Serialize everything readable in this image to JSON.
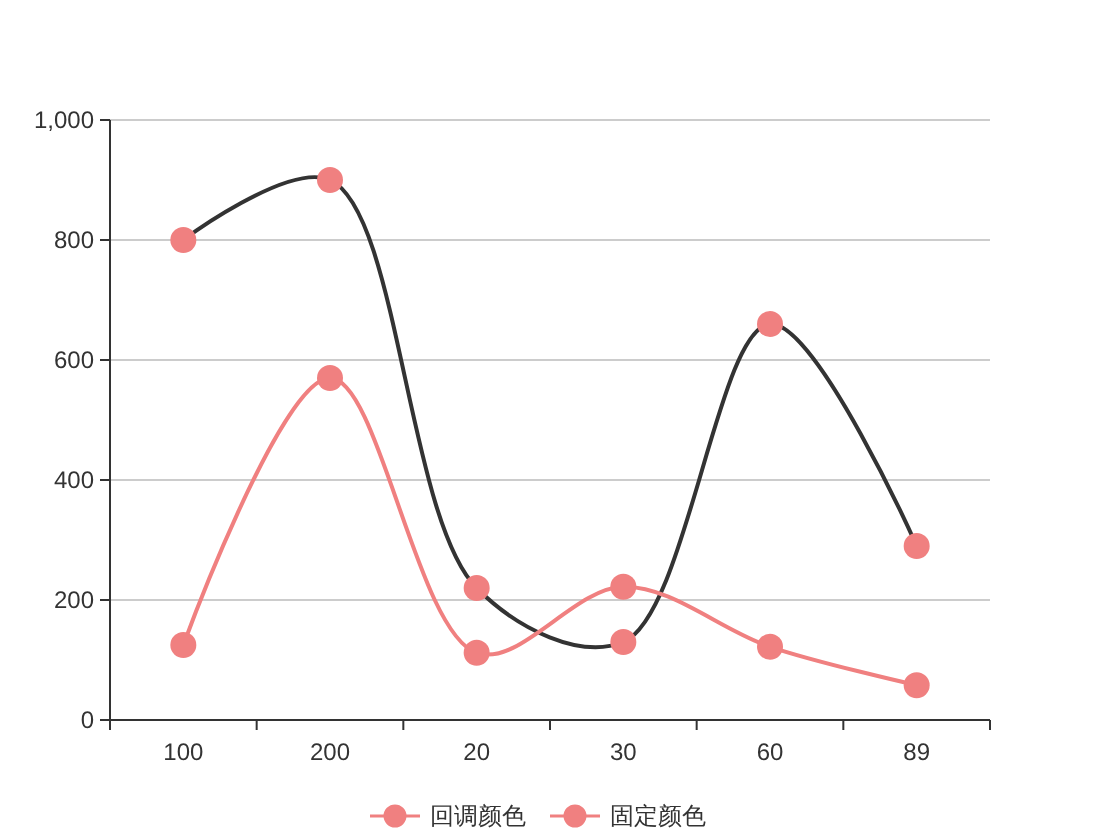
{
  "chart_data": {
    "type": "line",
    "categories": [
      "100",
      "200",
      "20",
      "30",
      "60",
      "89"
    ],
    "series": [
      {
        "name": "回调颜色",
        "color": "#333333",
        "colors": [
          "#f08080",
          "#f08080",
          "#f08080",
          "#f08080",
          "#f08080",
          "#f08080"
        ],
        "values": [
          800,
          900,
          220,
          130,
          660,
          290
        ]
      },
      {
        "name": "固定颜色",
        "color": "#f08080",
        "values": [
          125,
          570,
          112,
          222,
          122,
          58
        ]
      }
    ],
    "ylim": [
      0,
      1000
    ],
    "yticks": [
      {
        "value": 0,
        "label": "0"
      },
      {
        "value": 200,
        "label": "200"
      },
      {
        "value": 400,
        "label": "400"
      },
      {
        "value": 600,
        "label": "600"
      },
      {
        "value": 800,
        "label": "800"
      },
      {
        "value": 1000,
        "label": "1,000"
      }
    ],
    "grid": "y",
    "legend": "bottom",
    "marker": "circle"
  }
}
